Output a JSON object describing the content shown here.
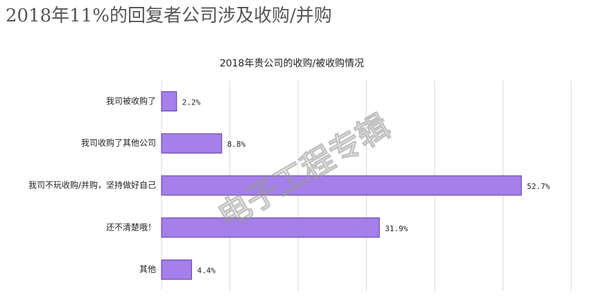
{
  "chart_data": {
    "type": "barh",
    "title": "2018年11%的回复者公司涉及收购/并购",
    "subtitle": "2018年贵公司的收购/被收购情况",
    "watermark": "电子工程专辑",
    "categories": [
      "我司被收购了",
      "我司收购了其他公司",
      "我司不玩收购/并购，坚持做好自己",
      "还不清楚哦！",
      "其他"
    ],
    "values": [
      2.2,
      8.8,
      52.7,
      31.9,
      4.4
    ],
    "value_labels": [
      "2.2%",
      "8.8%",
      "52.7%",
      "31.9%",
      "4.4%"
    ],
    "color": "#a57fea",
    "xlim": [
      0,
      60
    ],
    "xticks": [
      0,
      10,
      20,
      30,
      40,
      50,
      60
    ],
    "grid": true
  }
}
